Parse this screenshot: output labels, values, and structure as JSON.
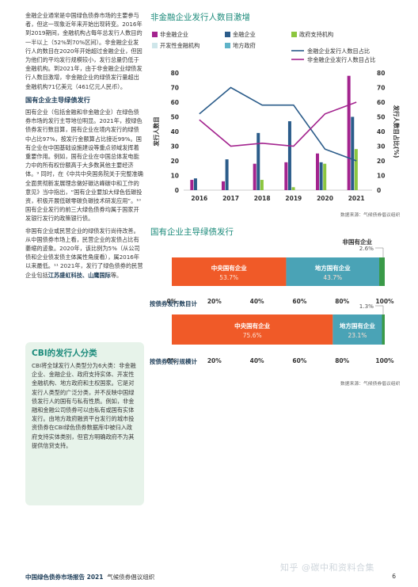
{
  "left_text": {
    "p1": "金融企业通常是中国绿色债券市场的主要参与者，但这一现象近年来开始出现转变。2016年到2019期间，金融机构占每年总发行人数目的一半以上（52%到70%区间）。非金融企业发行人的数目在2020年开始超过金融企业，但因为他们的平均发行规模较小，发行总量仍低于金融机构。到2021年，由于非金融企业绿债发行人数目激增，非金融企业的绿债发行量超出金融机构71亿美元（461亿元人民币）。",
    "h1": "国有企业主导绿债发行",
    "p2": "国有企业（包括金融和非金融企业）在绿色债券市场的发行主导地位明显。2021年，按绿色债券发行数目算，国有企业在境内发行的绿债中占比97%，按发行金额算占比接近99%。国有企业在中国基础设施建设等重点领域发挥着重要作用。例如，国有企业在中国总体发电能力中的所有权份额高于大多数其他主要经济体。⁹ 同时，在《中共中央国务院关于完整准确全面贯彻新发展理念做好碳达峰碳中和工作的意见》当中指出，“国有企业要加大绿色低碳投资，积极开展低碳零碳负碳技术研发应用”。¹⁰ 国有企业发行的前三大绿色债券均属于国家开发银行发行的政策银行债。",
    "p3": "非国有企业或民营企业的绿债发行尚待改善。从中国债券市场上看，民营企业的发债占比有萎缩的迹象。2020年，该比例为5%（从公司债和企业债发债主体属性角度看），属2016年以来最低。¹¹ 2021年，发行了绿色债券的民营企业包括",
    "p3_bold": "江苏盛虹科技、山鹰国际",
    "p3_end": "等。"
  },
  "cbi_box": {
    "title": "CBI的发行人分类",
    "body": "CBI将全球发行人类型分为6大类：非金融企业、金融企业、政府支持实体、开发性金融机构、地方政府和主权国家。它是对发行人类型的广泛分类，并不反映中国绿债发行人的国有与私有性质。例如，非金融和金融公司债券可以由私有或国有实体发行。由地方政府融资平台发行的城市投资债券在CBI绿色债券数据库中被归入政府支持实体类别，但官方明确政府不为其提供信贷支持。"
  },
  "footer": {
    "left_bold": "中国绿色债券市场报告 2021",
    "left_rest": "气候债券倡议组织",
    "page": "6"
  },
  "watermark": "知乎 @碳中和资料合集",
  "chart1": {
    "title": "非金融企业发行人数目激增",
    "legend": [
      "非金融企业",
      "金融企业",
      "政府支持机构",
      "开发性金融机构",
      "地方政府",
      "金融企业发行人数目占比",
      "非金融企业发行人数目占比"
    ],
    "ylabel_left": "发行人数目",
    "ylabel_right": "发行人数目占比(%)",
    "source": "数据来源：气候债券倡议组织"
  },
  "chart2": {
    "title": "国有企业主导绿债发行",
    "bar1_caption": "按债券发行数目计",
    "bar2_caption": "按债券发行规模计",
    "source": "数据来源：气候债券倡议组织"
  },
  "chart_data": [
    {
      "type": "bar",
      "categories": [
        "2016",
        "2017",
        "2018",
        "2019",
        "2020",
        "2021"
      ],
      "series": [
        {
          "name": "非金融企业",
          "values": [
            7,
            6,
            18,
            19,
            25,
            78
          ]
        },
        {
          "name": "金融企业",
          "values": [
            8,
            21,
            39,
            47,
            19,
            50
          ]
        },
        {
          "name": "政府支持机构",
          "values": [
            0,
            0,
            7,
            2,
            18,
            28
          ]
        },
        {
          "name": "开发性金融机构",
          "values": [
            0,
            0,
            0,
            0,
            0,
            0
          ]
        },
        {
          "name": "地方政府",
          "values": [
            0,
            0,
            0,
            0,
            0,
            0
          ]
        }
      ],
      "line_series": [
        {
          "name": "金融企业发行人数目占比",
          "values": [
            52,
            70,
            58,
            58,
            28,
            20
          ]
        },
        {
          "name": "非金融企业发行人数目占比",
          "values": [
            48,
            30,
            32,
            30,
            52,
            60
          ]
        }
      ],
      "ylim": [
        0,
        80
      ],
      "yticks": [
        0,
        10,
        20,
        30,
        40,
        50,
        60,
        70,
        80
      ],
      "ylim_right": [
        0,
        80
      ],
      "yticks_right": [
        0,
        10,
        20,
        30,
        40,
        50,
        60,
        70,
        80
      ],
      "colors": {
        "非金融企业": "#a3238e",
        "金融企业": "#2b5c8a",
        "政府支持机构": "#8cc63f",
        "开发性金融机构": "#cfe6ea",
        "地方政府": "#5fb3c8",
        "金融企业发行人数目占比": "#2b5c8a",
        "非金融企业发行人数目占比": "#a3238e"
      }
    },
    {
      "type": "bar",
      "orientation": "horizontal-stacked",
      "categories": [
        "按债券发行数目计",
        "按债券发行规模计"
      ],
      "series": [
        {
          "name": "中央国有企业",
          "values": [
            53.7,
            75.6
          ],
          "color": "#f05a28"
        },
        {
          "name": "地方国有企业",
          "values": [
            43.7,
            23.1
          ],
          "color": "#4aa3b6"
        },
        {
          "name": "非国有企业",
          "values": [
            2.6,
            1.3
          ],
          "color": "#3a9a48"
        }
      ],
      "xticks": [
        "0%",
        "20%",
        "40%",
        "60%",
        "80%",
        "100%"
      ],
      "labels": {
        "central": "中央国有企业",
        "local": "地方国有企业",
        "nonstate": "非国有企业"
      },
      "value_labels": {
        "bar1": [
          "53.7%",
          "43.7%",
          "2.6%"
        ],
        "bar2": [
          "75.6%",
          "23.1%",
          "1.3%"
        ]
      }
    }
  ]
}
